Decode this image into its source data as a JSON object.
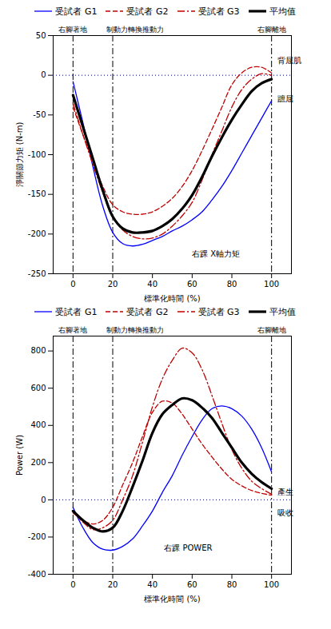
{
  "chart_data": [
    {
      "type": "line",
      "xlabel": "標準化時間 (%)",
      "ylabel": "淨關節力矩 (N-m)",
      "xlim": [
        -10,
        110
      ],
      "xticks": [
        0,
        20,
        40,
        60,
        80,
        100
      ],
      "ylim": [
        -250,
        50
      ],
      "yticks": [
        -250,
        -200,
        -150,
        -100,
        -50,
        0,
        50
      ],
      "legend": "top",
      "hline": 0,
      "events": [
        {
          "x": 0,
          "label": "右腳著地"
        },
        {
          "x": 20,
          "label": "制動力轉換推動力"
        },
        {
          "x": 100,
          "label": "右腳離地"
        }
      ],
      "annotations": [
        {
          "text": "右踝 X軸力矩",
          "x": 72,
          "y": -225
        },
        {
          "text": "背屈肌",
          "x": 103,
          "y": 18
        },
        {
          "text": "蹠屈",
          "x": 103,
          "y": -30
        }
      ],
      "x": [
        0,
        5,
        10,
        15,
        20,
        25,
        30,
        35,
        40,
        45,
        50,
        55,
        60,
        65,
        70,
        75,
        80,
        85,
        90,
        95,
        100
      ],
      "series": [
        {
          "name": "受試者 G1",
          "color": "#0000ff",
          "line_style": "solid",
          "values": [
            -8,
            -60,
            -115,
            -165,
            -198,
            -212,
            -215,
            -213,
            -208,
            -203,
            -196,
            -190,
            -182,
            -172,
            -157,
            -140,
            -120,
            -98,
            -76,
            -54,
            -32
          ]
        },
        {
          "name": "受試者 G2",
          "color": "#c00000",
          "line_style": "dashed",
          "values": [
            -40,
            -75,
            -108,
            -140,
            -163,
            -172,
            -175,
            -175,
            -172,
            -165,
            -155,
            -140,
            -120,
            -95,
            -68,
            -40,
            -12,
            3,
            10,
            10,
            3
          ]
        },
        {
          "name": "受試者 G3",
          "color": "#c00000",
          "line_style": "dashdot",
          "values": [
            -35,
            -75,
            -112,
            -148,
            -178,
            -195,
            -203,
            -206,
            -205,
            -200,
            -190,
            -177,
            -160,
            -132,
            -100,
            -70,
            -40,
            -18,
            -5,
            2,
            0
          ]
        },
        {
          "name": "平均值",
          "color": "#000000",
          "line_style": "bold",
          "values": [
            -25,
            -65,
            -105,
            -145,
            -178,
            -193,
            -198,
            -198,
            -196,
            -190,
            -181,
            -168,
            -151,
            -128,
            -102,
            -78,
            -56,
            -37,
            -20,
            -10,
            -5
          ]
        }
      ]
    },
    {
      "type": "line",
      "xlabel": "標準化時間 (%)",
      "ylabel": "Power (W)",
      "xlim": [
        -10,
        110
      ],
      "xticks": [
        0,
        20,
        40,
        60,
        80,
        100
      ],
      "ylim": [
        -400,
        880
      ],
      "yticks": [
        -400,
        -200,
        0,
        200,
        400,
        600,
        800
      ],
      "legend": "top",
      "hline": 0,
      "events": [
        {
          "x": 0,
          "label": "右腳著地"
        },
        {
          "x": 20,
          "label": "制動力轉換推動力"
        },
        {
          "x": 100,
          "label": "右腳離地"
        }
      ],
      "annotations": [
        {
          "text": "右踝 POWER",
          "x": 58,
          "y": -260
        },
        {
          "text": "產生",
          "x": 103,
          "y": 40
        },
        {
          "text": "吸收",
          "x": 103,
          "y": -70
        }
      ],
      "x": [
        0,
        5,
        10,
        15,
        20,
        25,
        30,
        35,
        40,
        45,
        50,
        55,
        60,
        65,
        70,
        75,
        80,
        85,
        90,
        95,
        100
      ],
      "series": [
        {
          "name": "受試者 G1",
          "color": "#0000ff",
          "line_style": "solid",
          "values": [
            -40,
            -150,
            -230,
            -265,
            -270,
            -250,
            -210,
            -140,
            -60,
            40,
            130,
            240,
            340,
            430,
            490,
            505,
            490,
            450,
            380,
            280,
            150
          ]
        },
        {
          "name": "受試者 G2",
          "color": "#c00000",
          "line_style": "dashed",
          "values": [
            -70,
            -110,
            -130,
            -110,
            -40,
            80,
            200,
            340,
            470,
            530,
            520,
            460,
            380,
            300,
            230,
            165,
            110,
            75,
            50,
            35,
            25
          ]
        },
        {
          "name": "受試者 G3",
          "color": "#c00000",
          "line_style": "dashdot",
          "values": [
            -65,
            -120,
            -160,
            -150,
            -110,
            0,
            130,
            310,
            500,
            650,
            750,
            815,
            790,
            700,
            560,
            410,
            270,
            170,
            100,
            60,
            30
          ]
        },
        {
          "name": "平均值",
          "color": "#000000",
          "line_style": "bold",
          "values": [
            -60,
            -110,
            -150,
            -170,
            -150,
            -60,
            70,
            210,
            360,
            460,
            510,
            545,
            535,
            495,
            440,
            360,
            280,
            200,
            140,
            95,
            60
          ]
        }
      ]
    }
  ]
}
